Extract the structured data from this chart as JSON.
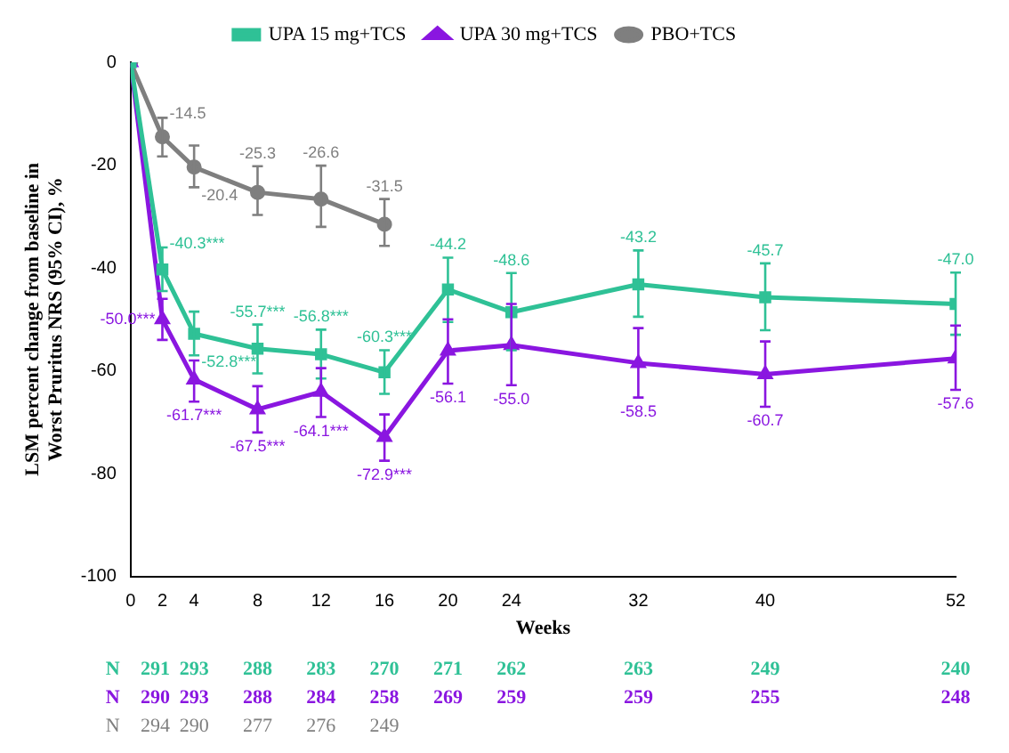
{
  "chart_data": {
    "type": "line",
    "xlabel": "Weeks",
    "ylabel": "LSM percent change from baseline in Worst Pruritus NRS (95% CI), %",
    "xlim": [
      0,
      52
    ],
    "xticks": [
      0,
      2,
      4,
      8,
      12,
      16,
      20,
      24,
      32,
      40,
      52
    ],
    "ylim": [
      -100,
      0
    ],
    "yticks": [
      -100,
      -80,
      -60,
      -40,
      -20,
      0
    ],
    "grid": false,
    "legend": "top",
    "line_style": "solid",
    "series": [
      {
        "name": "UPA 15 mg+TCS",
        "color": "#2fc196",
        "marker": "square",
        "x": [
          0,
          2,
          4,
          8,
          12,
          16,
          20,
          24,
          32,
          40,
          52
        ],
        "values": [
          0,
          -40.3,
          -52.8,
          -55.7,
          -56.8,
          -60.3,
          -44.2,
          -48.6,
          -43.2,
          -45.7,
          -47.0
        ],
        "errors": [
          null,
          [
            -44.5,
            -36
          ],
          [
            -57,
            -48.5
          ],
          [
            -60.5,
            -51
          ],
          [
            -61.5,
            -52
          ],
          [
            -64.5,
            -56
          ],
          [
            -50.5,
            -38
          ],
          [
            -56,
            -41
          ],
          [
            -49.5,
            -36.6
          ],
          [
            -52.1,
            -39.1
          ],
          [
            -53,
            -40.9
          ]
        ],
        "value_labels": [
          null,
          "-40.3***",
          "-52.8***",
          "-55.7***",
          "-56.8***",
          "-60.3***",
          "-44.2",
          "-48.6",
          "-43.2",
          "-45.7",
          "-47.0"
        ]
      },
      {
        "name": "UPA 30 mg+TCS",
        "color": "#8a16e0",
        "marker": "triangle",
        "x": [
          0,
          2,
          4,
          8,
          12,
          16,
          20,
          24,
          32,
          40,
          52
        ],
        "values": [
          0,
          -50.0,
          -61.7,
          -67.5,
          -64.1,
          -72.9,
          -56.1,
          -55.0,
          -58.5,
          -60.7,
          -57.6
        ],
        "errors": [
          null,
          [
            -54,
            -46
          ],
          [
            -66,
            -58
          ],
          [
            -72,
            -63
          ],
          [
            -69,
            -59.5
          ],
          [
            -77.5,
            -68.5
          ],
          [
            -62.5,
            -50
          ],
          [
            -62.8,
            -47
          ],
          [
            -65.2,
            -51.7
          ],
          [
            -67,
            -54.3
          ],
          [
            -63.7,
            -51.2
          ]
        ],
        "value_labels": [
          null,
          "-50.0***",
          "-61.7***",
          "-67.5***",
          "-64.1***",
          "-72.9***",
          "-56.1",
          "-55.0",
          "-58.5",
          "-60.7",
          "-57.6"
        ]
      },
      {
        "name": "PBO+TCS",
        "color": "#7f7f7f",
        "marker": "circle",
        "x": [
          0,
          2,
          4,
          8,
          12,
          16
        ],
        "values": [
          0,
          -14.5,
          -20.4,
          -25.3,
          -26.6,
          -31.5
        ],
        "errors": [
          null,
          [
            -18.3,
            -10.8
          ],
          [
            -24.3,
            -16.2
          ],
          [
            -29.7,
            -20.2
          ],
          [
            -32,
            -20.1
          ],
          [
            -35.7,
            -26.6
          ]
        ],
        "value_labels": [
          null,
          "-14.5",
          "-20.4",
          "-25.3",
          "-26.6",
          "-31.5"
        ]
      }
    ],
    "annotations": [
      "N 291 293 288 283 270 271 262 263 249 240",
      "N 290 293 288 284 258 269 259 259 255 248",
      "N 294 290 277 276 249"
    ]
  }
}
